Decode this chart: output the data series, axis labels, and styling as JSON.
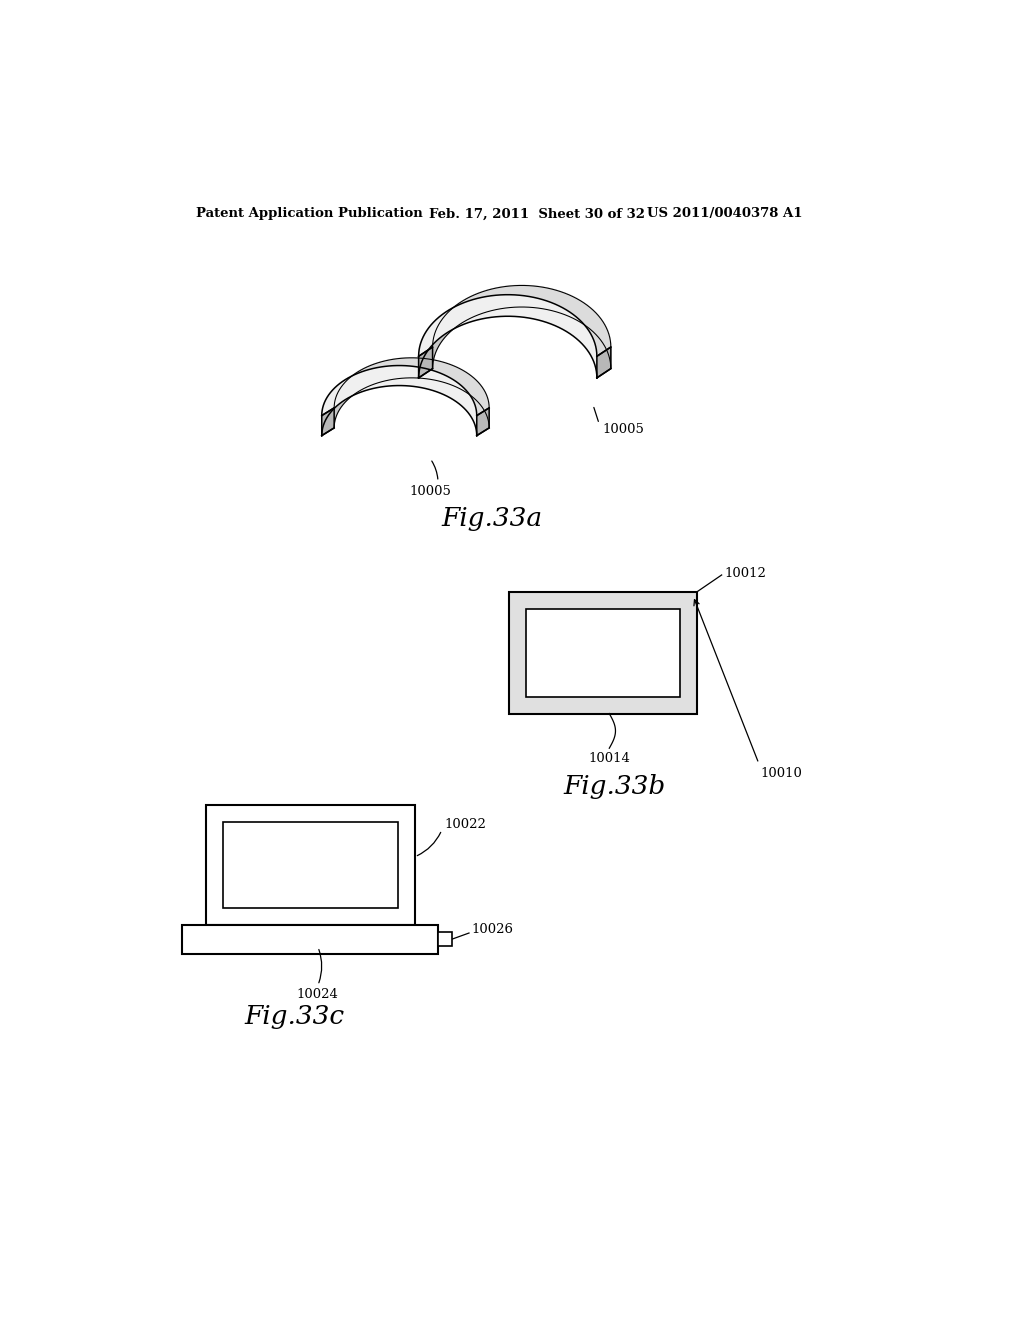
{
  "bg_color": "#ffffff",
  "header_left": "Patent Application Publication",
  "header_mid": "Feb. 17, 2011  Sheet 30 of 32",
  "header_right": "US 2011/0040378 A1",
  "fig33a_label": "Fig.33a",
  "fig33b_label": "Fig.33b",
  "fig33c_label": "Fig.33c",
  "label_10005_a": "10005",
  "label_10005_b": "10005",
  "label_10010": "10010",
  "label_10012": "10012",
  "label_10014": "10014",
  "label_10022": "10022",
  "label_10024": "10024",
  "label_10026": "10026",
  "line_color": "#000000",
  "fill_light": "#e8e8e8",
  "fill_mid": "#cccccc",
  "fill_white": "#ffffff"
}
